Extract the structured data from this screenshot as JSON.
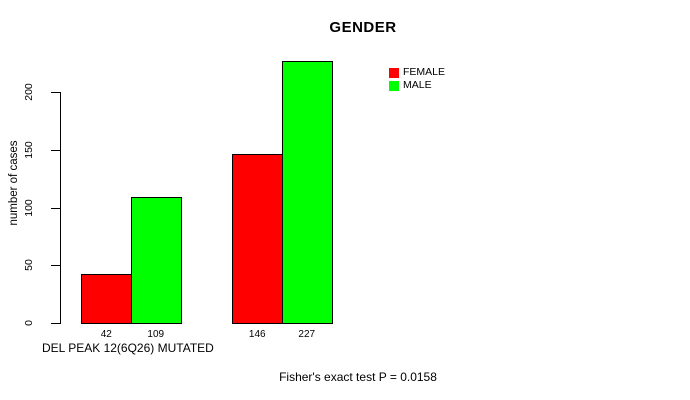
{
  "chart_data": {
    "type": "bar",
    "title": "GENDER",
    "ylabel": "number of cases",
    "xlabel": "",
    "group_label": "DEL PEAK 12(6Q26) MUTATED",
    "categories": [
      "DEL PEAK 12(6Q26) MUTATED",
      ""
    ],
    "series": [
      {
        "name": "FEMALE",
        "color": "#ff0000",
        "values": [
          42,
          146
        ]
      },
      {
        "name": "MALE",
        "color": "#00ff00",
        "values": [
          109,
          227
        ]
      }
    ],
    "bar_value_labels": [
      "42",
      "109",
      "146",
      "227"
    ],
    "yticks": [
      0,
      50,
      100,
      150,
      200
    ],
    "ylim": [
      0,
      230
    ],
    "grid": false,
    "legend_position": "top-right",
    "annotation": "Fisher's exact test P = 0.0158"
  },
  "colors": {
    "female": "#ff0000",
    "male": "#00ff00",
    "axis": "#000000",
    "background": "#ffffff"
  }
}
